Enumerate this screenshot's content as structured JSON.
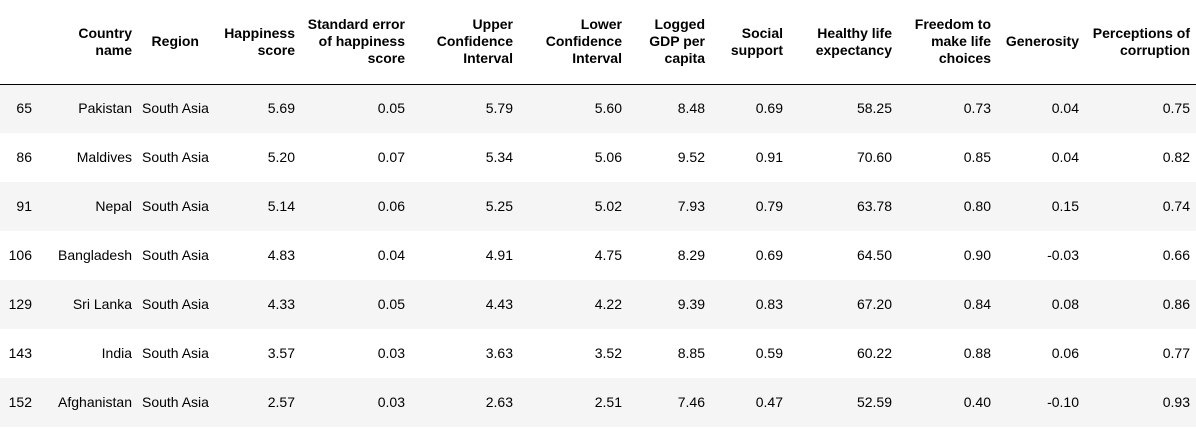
{
  "table": {
    "columns": [
      "",
      "Country name",
      "Region",
      "Happiness score",
      "Standard error of happiness score",
      "Upper Confidence Interval",
      "Lower Confidence Interval",
      "Logged GDP per capita",
      "Social support",
      "Healthy life expectancy",
      "Freedom to make life choices",
      "Generosity",
      "Perceptions of corruption"
    ],
    "rows": [
      [
        "65",
        "Pakistan",
        "South Asia",
        "5.69",
        "0.05",
        "5.79",
        "5.60",
        "8.48",
        "0.69",
        "58.25",
        "0.73",
        "0.04",
        "0.75"
      ],
      [
        "86",
        "Maldives",
        "South Asia",
        "5.20",
        "0.07",
        "5.34",
        "5.06",
        "9.52",
        "0.91",
        "70.60",
        "0.85",
        "0.04",
        "0.82"
      ],
      [
        "91",
        "Nepal",
        "South Asia",
        "5.14",
        "0.06",
        "5.25",
        "5.02",
        "7.93",
        "0.79",
        "63.78",
        "0.80",
        "0.15",
        "0.74"
      ],
      [
        "106",
        "Bangladesh",
        "South Asia",
        "4.83",
        "0.04",
        "4.91",
        "4.75",
        "8.29",
        "0.69",
        "64.50",
        "0.90",
        "-0.03",
        "0.66"
      ],
      [
        "129",
        "Sri Lanka",
        "South Asia",
        "4.33",
        "0.05",
        "4.43",
        "4.22",
        "9.39",
        "0.83",
        "67.20",
        "0.84",
        "0.08",
        "0.86"
      ],
      [
        "143",
        "India",
        "South Asia",
        "3.57",
        "0.03",
        "3.63",
        "3.52",
        "8.85",
        "0.59",
        "60.22",
        "0.88",
        "0.06",
        "0.77"
      ],
      [
        "152",
        "Afghanistan",
        "South Asia",
        "2.57",
        "0.03",
        "2.63",
        "2.51",
        "7.46",
        "0.47",
        "52.59",
        "0.40",
        "-0.10",
        "0.93"
      ]
    ]
  }
}
